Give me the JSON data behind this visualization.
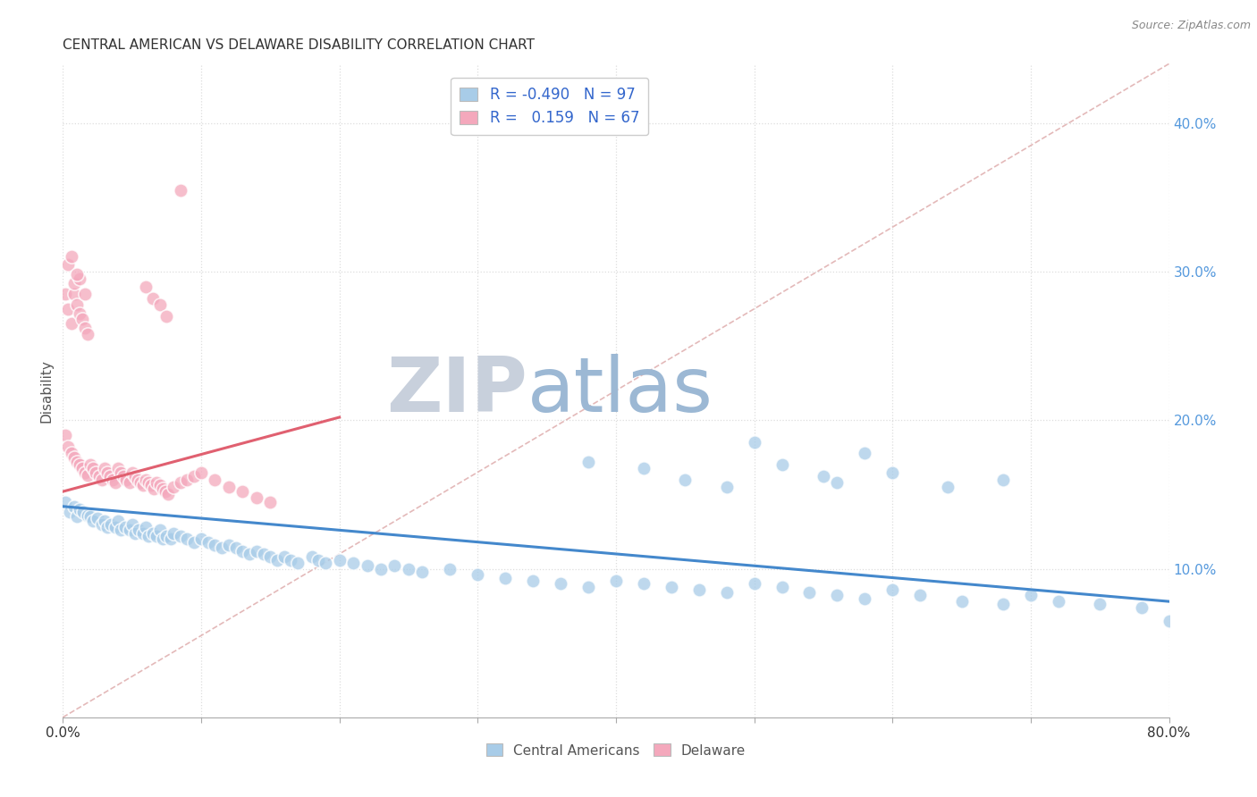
{
  "title": "CENTRAL AMERICAN VS DELAWARE DISABILITY CORRELATION CHART",
  "source": "Source: ZipAtlas.com",
  "ylabel": "Disability",
  "xlim": [
    0.0,
    0.8
  ],
  "ylim": [
    0.0,
    0.44
  ],
  "xtick_positions": [
    0.0,
    0.1,
    0.2,
    0.3,
    0.4,
    0.5,
    0.6,
    0.7,
    0.8
  ],
  "xtick_labels_shown": [
    "0.0%",
    "",
    "",
    "",
    "",
    "",
    "",
    "",
    "80.0%"
  ],
  "ytick_right_positions": [
    0.1,
    0.2,
    0.3,
    0.4
  ],
  "ytick_right_labels": [
    "10.0%",
    "20.0%",
    "30.0%",
    "40.0%"
  ],
  "legend_r_blue": "-0.490",
  "legend_n_blue": "97",
  "legend_r_pink": "0.159",
  "legend_n_pink": "67",
  "blue_color": "#A8CCE8",
  "pink_color": "#F4A8BC",
  "blue_line_color": "#4488CC",
  "pink_line_color": "#E06070",
  "dashed_line_color": "#DDA8A8",
  "grid_color": "#DDDDDD",
  "watermark_zip_color": "#C8D0DC",
  "watermark_atlas_color": "#9CB8D4",
  "blue_trend_x": [
    0.0,
    0.8
  ],
  "blue_trend_y": [
    0.142,
    0.078
  ],
  "pink_trend_x": [
    0.0,
    0.2
  ],
  "pink_trend_y": [
    0.152,
    0.202
  ],
  "dashed_trend_x": [
    0.0,
    0.8
  ],
  "dashed_trend_y": [
    0.0,
    0.44
  ],
  "blue_scatter_x": [
    0.002,
    0.005,
    0.008,
    0.01,
    0.012,
    0.015,
    0.018,
    0.02,
    0.022,
    0.025,
    0.028,
    0.03,
    0.032,
    0.035,
    0.038,
    0.04,
    0.042,
    0.045,
    0.048,
    0.05,
    0.052,
    0.055,
    0.058,
    0.06,
    0.062,
    0.065,
    0.068,
    0.07,
    0.072,
    0.075,
    0.078,
    0.08,
    0.085,
    0.09,
    0.095,
    0.1,
    0.105,
    0.11,
    0.115,
    0.12,
    0.125,
    0.13,
    0.135,
    0.14,
    0.145,
    0.15,
    0.155,
    0.16,
    0.165,
    0.17,
    0.18,
    0.185,
    0.19,
    0.2,
    0.21,
    0.22,
    0.23,
    0.24,
    0.25,
    0.26,
    0.28,
    0.3,
    0.32,
    0.34,
    0.36,
    0.38,
    0.4,
    0.42,
    0.44,
    0.46,
    0.48,
    0.5,
    0.52,
    0.54,
    0.56,
    0.58,
    0.6,
    0.62,
    0.65,
    0.68,
    0.7,
    0.72,
    0.75,
    0.78,
    0.8,
    0.38,
    0.42,
    0.5,
    0.55,
    0.58,
    0.45,
    0.48,
    0.52,
    0.56,
    0.6,
    0.64,
    0.68
  ],
  "blue_scatter_y": [
    0.145,
    0.138,
    0.142,
    0.135,
    0.14,
    0.138,
    0.136,
    0.135,
    0.132,
    0.134,
    0.13,
    0.132,
    0.128,
    0.13,
    0.128,
    0.132,
    0.126,
    0.128,
    0.126,
    0.13,
    0.124,
    0.126,
    0.124,
    0.128,
    0.122,
    0.124,
    0.122,
    0.126,
    0.12,
    0.122,
    0.12,
    0.124,
    0.122,
    0.12,
    0.118,
    0.12,
    0.118,
    0.116,
    0.114,
    0.116,
    0.114,
    0.112,
    0.11,
    0.112,
    0.11,
    0.108,
    0.106,
    0.108,
    0.106,
    0.104,
    0.108,
    0.106,
    0.104,
    0.106,
    0.104,
    0.102,
    0.1,
    0.102,
    0.1,
    0.098,
    0.1,
    0.096,
    0.094,
    0.092,
    0.09,
    0.088,
    0.092,
    0.09,
    0.088,
    0.086,
    0.084,
    0.09,
    0.088,
    0.084,
    0.082,
    0.08,
    0.086,
    0.082,
    0.078,
    0.076,
    0.082,
    0.078,
    0.076,
    0.074,
    0.065,
    0.172,
    0.168,
    0.185,
    0.162,
    0.178,
    0.16,
    0.155,
    0.17,
    0.158,
    0.165,
    0.155,
    0.16
  ],
  "pink_scatter_x": [
    0.002,
    0.004,
    0.006,
    0.008,
    0.01,
    0.012,
    0.014,
    0.016,
    0.018,
    0.02,
    0.022,
    0.024,
    0.026,
    0.028,
    0.03,
    0.032,
    0.034,
    0.036,
    0.038,
    0.04,
    0.042,
    0.044,
    0.046,
    0.048,
    0.05,
    0.052,
    0.054,
    0.056,
    0.058,
    0.06,
    0.062,
    0.064,
    0.066,
    0.068,
    0.07,
    0.072,
    0.074,
    0.076,
    0.08,
    0.085,
    0.09,
    0.095,
    0.1,
    0.11,
    0.12,
    0.13,
    0.14,
    0.15,
    0.002,
    0.004,
    0.006,
    0.008,
    0.01,
    0.012,
    0.014,
    0.016,
    0.018,
    0.004,
    0.008,
    0.012,
    0.016,
    0.006,
    0.01,
    0.06,
    0.065,
    0.07,
    0.075
  ],
  "pink_scatter_y": [
    0.19,
    0.182,
    0.178,
    0.175,
    0.172,
    0.17,
    0.168,
    0.165,
    0.163,
    0.17,
    0.168,
    0.165,
    0.162,
    0.16,
    0.168,
    0.165,
    0.162,
    0.16,
    0.158,
    0.168,
    0.165,
    0.162,
    0.16,
    0.158,
    0.165,
    0.162,
    0.16,
    0.158,
    0.156,
    0.16,
    0.158,
    0.156,
    0.154,
    0.158,
    0.156,
    0.154,
    0.152,
    0.15,
    0.155,
    0.158,
    0.16,
    0.162,
    0.165,
    0.16,
    0.155,
    0.152,
    0.148,
    0.145,
    0.285,
    0.275,
    0.265,
    0.285,
    0.278,
    0.272,
    0.268,
    0.262,
    0.258,
    0.305,
    0.292,
    0.295,
    0.285,
    0.31,
    0.298,
    0.29,
    0.282,
    0.278,
    0.27
  ],
  "pink_outlier_x": [
    0.085
  ],
  "pink_outlier_y": [
    0.355
  ]
}
